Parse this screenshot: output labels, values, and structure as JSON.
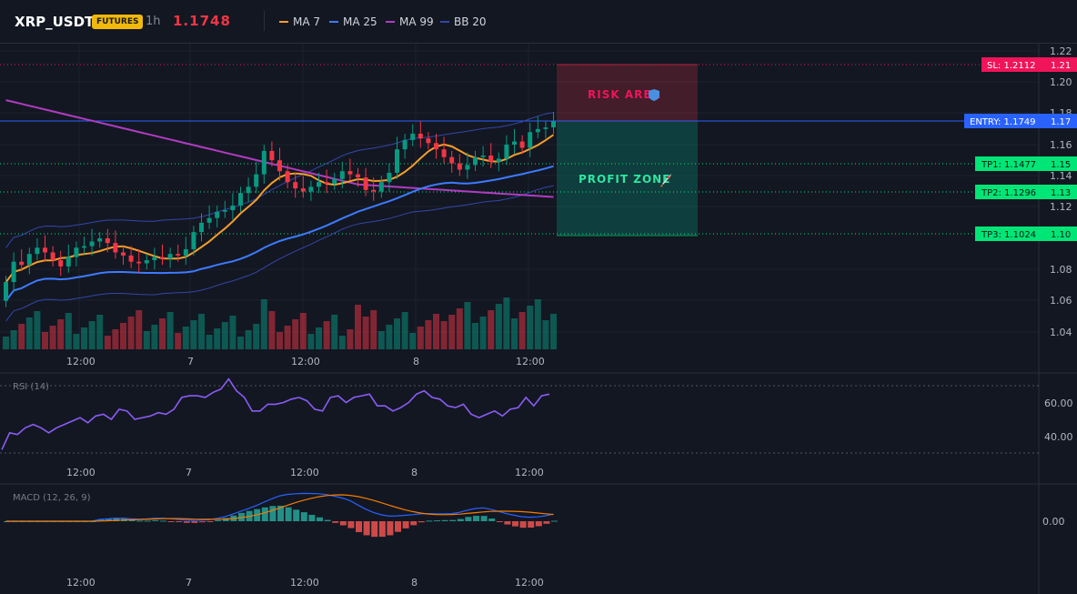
{
  "header": {
    "symbol": "XRP_USDT",
    "badge": "FUTURES",
    "timeframe": "1h",
    "last_price": "1.1748",
    "legend": [
      {
        "name": "MA 7",
        "color": "#f59e2a"
      },
      {
        "name": "MA 25",
        "color": "#3d7bff"
      },
      {
        "name": "MA 99",
        "color": "#b03cc2"
      },
      {
        "name": "BB 20",
        "color": "#3347a8"
      }
    ]
  },
  "price_axis": {
    "ticks": [
      "1.22",
      "1.20",
      "1.18",
      "1.16",
      "1.14",
      "1.12",
      "1.08",
      "1.06",
      "1.04"
    ]
  },
  "time_axis": {
    "labels": [
      "12:00",
      "7",
      "12:00",
      "8",
      "12:00"
    ]
  },
  "zones": {
    "risk": {
      "label": "RISK AREA",
      "icon": "shield-icon"
    },
    "profit": {
      "label": "PROFIT ZONE",
      "icon": "rocket-icon"
    }
  },
  "levels": {
    "sl": {
      "label": "SL: 1.2112",
      "tick": "1.21",
      "color": "#f0145a"
    },
    "entry": {
      "label": "ENTRY: 1.1749",
      "tick": "1.17",
      "color": "#2962ff"
    },
    "tp1": {
      "label": "TP1: 1.1477",
      "tick": "1.15",
      "color": "#00e676"
    },
    "tp2": {
      "label": "TP2: 1.1296",
      "tick": "1.13",
      "color": "#00e676"
    },
    "tp3": {
      "label": "TP3: 1.1024",
      "tick": "1.10",
      "color": "#00e676"
    }
  },
  "rsi": {
    "label": "RSI (14)",
    "ticks": [
      "60.00",
      "40.00"
    ],
    "color": "#8b5cf6",
    "values": [
      32,
      42,
      41,
      45,
      47,
      45,
      42,
      45,
      47,
      49,
      51,
      48,
      52,
      53,
      50,
      56,
      55,
      50,
      51,
      52,
      54,
      53,
      56,
      63,
      64,
      64,
      63,
      66,
      68,
      74,
      67,
      63,
      55,
      55,
      59,
      59,
      60,
      62,
      63,
      61,
      56,
      55,
      63,
      64,
      60,
      63,
      64,
      65,
      58,
      58,
      55,
      57,
      60,
      65,
      67,
      63,
      62,
      58,
      57,
      59,
      53,
      51,
      53,
      55,
      52,
      56,
      57,
      63,
      58,
      64,
      65
    ]
  },
  "macd": {
    "label": "MACD (12, 26, 9)",
    "tick": "0.00",
    "macd_color": "#2962ff",
    "signal_color": "#f57c00",
    "hist_up_color": "#26a69a",
    "hist_down_color": "#ef5350"
  },
  "colors": {
    "bull": "#089981",
    "bear": "#f23645",
    "background": "#131722"
  }
}
